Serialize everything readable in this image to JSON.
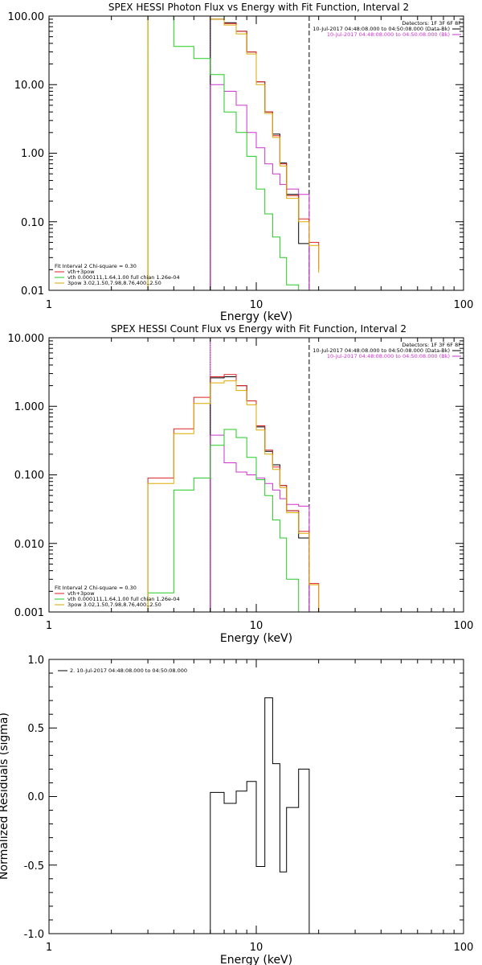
{
  "chart_data": [
    {
      "type": "line",
      "title": "SPEX HESSI Photon Flux vs Energy with Fit Function, Interval 2",
      "xlabel": "Energy (keV)",
      "ylabel": "",
      "xscale": "log",
      "yscale": "log",
      "xlim": [
        1,
        100
      ],
      "ylim": [
        0.01,
        100
      ],
      "xticklabels": [
        "1",
        "10",
        "100"
      ],
      "yticks": [
        0.01,
        0.1,
        1,
        10,
        100
      ],
      "yticklabels": [
        "0.01",
        "0.10",
        "1.00",
        "10.00",
        "100.00"
      ],
      "vlines": [
        {
          "x": 6.0,
          "style": "dotted",
          "color": "#000000"
        },
        {
          "x": 6.0,
          "style": "solid",
          "color": "#cc33cc"
        },
        {
          "x": 18.0,
          "style": "dashed",
          "color": "#000000"
        }
      ],
      "legend_top_right": [
        {
          "text": "Detectors: 1F 3F 6F 8F",
          "color": "#000000"
        },
        {
          "text": "10-Jul-2017 04:48:08.000 to 04:50:08.000 (Data-Bk)",
          "color": "#000000"
        },
        {
          "text": "10-Jul-2017 04:48:08.000 to 04:50:08.000 (Bk)",
          "color": "#cc33cc"
        }
      ],
      "legend_bottom_left": [
        {
          "text": "Fit Interval 2   Chi-square = 0.30",
          "color": "#000000"
        },
        {
          "text": "vth+3pow",
          "color": "#dd2222"
        },
        {
          "text": "vth 0.000111,1.64,1.00  full chian 1.26e-04",
          "color": "#22cc22"
        },
        {
          "text": "3pow 3.02,1.50,7.98,8.76,400.,2.50",
          "color": "#ddaa00"
        }
      ],
      "series": [
        {
          "name": "Data-Bk",
          "color": "#000000",
          "edges": [
            6.0,
            7.0,
            8.0,
            9.0,
            10.0,
            11.0,
            12.0,
            13.0,
            14.0,
            16.0,
            18.0
          ],
          "values": [
            90,
            80,
            60,
            30,
            11,
            4.0,
            1.9,
            0.72,
            0.25,
            0.048
          ]
        },
        {
          "name": "Bk",
          "color": "#cc33cc",
          "edges": [
            6.0,
            7.0,
            8.0,
            9.0,
            10.0,
            11.0,
            12.0,
            13.0,
            14.0,
            16.0,
            18.0
          ],
          "values": [
            10,
            8,
            5.0,
            2.0,
            1.2,
            0.7,
            0.5,
            0.35,
            0.3,
            0.25
          ]
        },
        {
          "name": "vth+3pow",
          "color": "#dd2222",
          "edges": [
            3.0,
            4.0,
            5.0,
            6.0,
            7.0,
            8.0,
            9.0,
            10.0,
            11.0,
            12.0,
            13.0,
            14.0,
            16.0,
            18.0,
            20.0
          ],
          "values": [
            100,
            100,
            100,
            90,
            78,
            60,
            30,
            11,
            4.0,
            1.8,
            0.7,
            0.24,
            0.11,
            0.05,
            0.02
          ]
        },
        {
          "name": "vth",
          "color": "#22cc22",
          "edges": [
            3.0,
            4.0,
            5.0,
            6.0,
            7.0,
            8.0,
            9.0,
            10.0,
            11.0,
            12.0,
            13.0,
            14.0,
            16.0
          ],
          "values": [
            100,
            36,
            24,
            14,
            4.0,
            2.0,
            0.9,
            0.3,
            0.13,
            0.06,
            0.03,
            0.012
          ]
        },
        {
          "name": "3pow",
          "color": "#ddaa00",
          "edges": [
            3.0,
            4.0,
            5.0,
            6.0,
            7.0,
            8.0,
            9.0,
            10.0,
            11.0,
            12.0,
            13.0,
            14.0,
            16.0,
            18.0,
            20.0
          ],
          "values": [
            100,
            100,
            100,
            90,
            74,
            55,
            28,
            10,
            3.8,
            1.7,
            0.65,
            0.22,
            0.1,
            0.045,
            0.018
          ]
        }
      ]
    },
    {
      "type": "line",
      "title": "SPEX HESSI Count Flux vs Energy with Fit Function, Interval 2",
      "xlabel": "Energy (keV)",
      "ylabel": "",
      "xscale": "log",
      "yscale": "log",
      "xlim": [
        1,
        100
      ],
      "ylim": [
        0.001,
        10
      ],
      "xticklabels": [
        "1",
        "10",
        "100"
      ],
      "yticks": [
        0.001,
        0.01,
        0.1,
        1,
        10
      ],
      "yticklabels": [
        "0.001",
        "0.010",
        "0.100",
        "1.000",
        "10.000"
      ],
      "vlines": [
        {
          "x": 6.0,
          "style": "dotted",
          "color": "#000000"
        },
        {
          "x": 6.0,
          "style": "solid",
          "color": "#cc33cc"
        },
        {
          "x": 18.0,
          "style": "dashed",
          "color": "#000000"
        }
      ],
      "legend_top_right": [
        {
          "text": "Detectors: 1F 3F 6F 8F",
          "color": "#000000"
        },
        {
          "text": "10-Jul-2017 04:48:08.000 to 04:50:08.000 (Data-Bk)",
          "color": "#000000"
        },
        {
          "text": "10-Jul-2017 04:48:08.000 to 04:50:08.000 (Bk)",
          "color": "#cc33cc"
        }
      ],
      "legend_bottom_left": [
        {
          "text": "Fit Interval 2   Chi-square = 0.30",
          "color": "#000000"
        },
        {
          "text": "vth+3pow",
          "color": "#dd2222"
        },
        {
          "text": "vth 0.000111,1.64,1.00  full chian 1.26e-04",
          "color": "#22cc22"
        },
        {
          "text": "3pow 3.02,1.50,7.98,8.76,400.,2.50",
          "color": "#ddaa00"
        }
      ],
      "series": [
        {
          "name": "Data-Bk",
          "color": "#000000",
          "edges": [
            6.0,
            7.0,
            8.0,
            9.0,
            10.0,
            11.0,
            12.0,
            13.0,
            14.0,
            16.0,
            18.0
          ],
          "values": [
            2.6,
            2.7,
            2.0,
            1.2,
            0.5,
            0.22,
            0.14,
            0.07,
            0.03,
            0.012
          ]
        },
        {
          "name": "Bk",
          "color": "#cc33cc",
          "edges": [
            6.0,
            7.0,
            8.0,
            9.0,
            10.0,
            11.0,
            12.0,
            13.0,
            14.0,
            16.0,
            18.0
          ],
          "values": [
            0.38,
            0.15,
            0.11,
            0.1,
            0.09,
            0.075,
            0.06,
            0.045,
            0.037,
            0.035
          ]
        },
        {
          "name": "vth+3pow",
          "color": "#dd2222",
          "edges": [
            3.0,
            4.0,
            5.0,
            6.0,
            7.0,
            8.0,
            9.0,
            10.0,
            11.0,
            12.0,
            13.0,
            14.0,
            16.0,
            18.0,
            20.0
          ],
          "values": [
            0.09,
            0.47,
            1.35,
            2.7,
            2.9,
            2.0,
            1.2,
            0.52,
            0.23,
            0.13,
            0.07,
            0.03,
            0.015,
            0.0026,
            0.0007
          ]
        },
        {
          "name": "vth",
          "color": "#22cc22",
          "edges": [
            3.0,
            4.0,
            5.0,
            6.0,
            7.0,
            8.0,
            9.0,
            10.0,
            11.0,
            12.0,
            13.0,
            14.0,
            16.0
          ],
          "values": [
            0.0019,
            0.06,
            0.09,
            0.27,
            0.46,
            0.35,
            0.18,
            0.085,
            0.05,
            0.022,
            0.012,
            0.003
          ]
        },
        {
          "name": "3pow",
          "color": "#ddaa00",
          "edges": [
            3.0,
            4.0,
            5.0,
            6.0,
            7.0,
            8.0,
            9.0,
            10.0,
            11.0,
            12.0,
            13.0,
            14.0,
            16.0,
            18.0,
            20.0
          ],
          "values": [
            0.075,
            0.4,
            1.1,
            2.2,
            2.35,
            1.7,
            1.05,
            0.45,
            0.2,
            0.12,
            0.065,
            0.028,
            0.014,
            0.0025,
            0.0007
          ]
        }
      ]
    },
    {
      "type": "line",
      "title": "",
      "xlabel": "Energy (keV)",
      "ylabel": "Normalized Residuals (sigma)",
      "xscale": "log",
      "yscale": "linear",
      "xlim": [
        1,
        100
      ],
      "ylim": [
        -1.0,
        1.0
      ],
      "xticklabels": [
        "1",
        "10",
        "100"
      ],
      "yticks": [
        -1.0,
        -0.5,
        0.0,
        0.5,
        1.0
      ],
      "yticklabels": [
        "-1.0",
        "-0.5",
        "0.0",
        "0.5",
        "1.0"
      ],
      "legend_top_left": [
        {
          "text": "2. 10-Jul-2017 04:48:08.000 to 04:50:08.000",
          "color": "#000000"
        }
      ],
      "series": [
        {
          "name": "",
          "color": "#000000",
          "edges": [
            6.0,
            7.0,
            8.0,
            9.0,
            10.0,
            11.0,
            12.0,
            13.0,
            14.0,
            16.0,
            18.0
          ],
          "values": [
            0.03,
            -0.05,
            0.04,
            0.11,
            -0.51,
            0.72,
            0.24,
            -0.55,
            -0.08,
            0.2
          ]
        }
      ]
    }
  ]
}
